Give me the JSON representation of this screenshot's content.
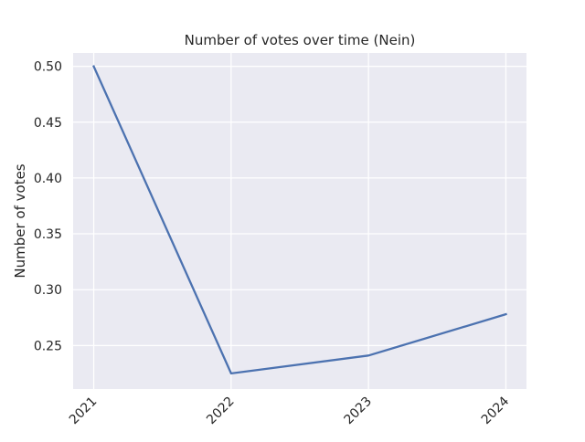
{
  "chart_data": {
    "type": "line",
    "title": "Number of votes over time (Nein)",
    "xlabel": "",
    "ylabel": "Number of votes",
    "x": [
      "2021",
      "2022",
      "2023",
      "2024"
    ],
    "series": [
      {
        "values": [
          0.5,
          0.225,
          0.241,
          0.278
        ],
        "color": "#4c72b0"
      }
    ],
    "ylim": [
      0.211,
      0.512
    ],
    "yticks": [
      0.25,
      0.3,
      0.35,
      0.4,
      0.45,
      0.5
    ],
    "ytick_labels": [
      "0.25",
      "0.30",
      "0.35",
      "0.40",
      "0.45",
      "0.50"
    ],
    "grid": true,
    "style": {
      "plot_background": "#eaeaf2",
      "grid_color": "#ffffff"
    }
  }
}
